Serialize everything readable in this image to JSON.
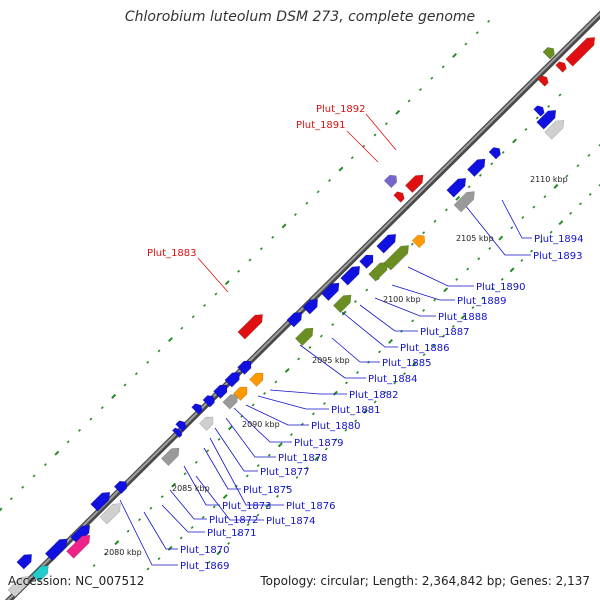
{
  "title": "Chlorobium luteolum DSM 273, complete genome",
  "footer": {
    "accession": "Accession: NC_007512",
    "summary": "Topology: circular; Length: 2,364,842 bp; Genes: 2,137"
  },
  "colors": {
    "backbone": "#8a8a8a",
    "cds_blue": "#1010e0",
    "cds_red": "#e01010",
    "cds_olive": "#6b8e23",
    "cds_gray": "#9a9a9a",
    "cds_light": "#cfcfcf",
    "cds_orange": "#ff9900",
    "cds_magenta": "#ee2288",
    "cds_cyan": "#22cccc",
    "cds_purple": "#7766cc",
    "tick_green": "#228b22",
    "label_red": "#dd1111",
    "label_blue": "#1111cc"
  },
  "scale_labels": [
    "2080 kbp",
    "2085 kbp",
    "2090 kbp",
    "2095 kbp",
    "2100 kbp",
    "2105 kbp",
    "2110 kbp"
  ],
  "gene_labels_blue": [
    "Plut_1869",
    "Plut_1870",
    "Plut_1871",
    "Plut_1872",
    "Plut_1873",
    "Plut_1874",
    "Plut_1875",
    "Plut_1876",
    "Plut_1877",
    "Plut_1878",
    "Plut_1879",
    "Plut_1880",
    "Plut_1881",
    "Plut_1882",
    "Plut_1884",
    "Plut_1885",
    "Plut_1886",
    "Plut_1887",
    "Plut_1888",
    "Plut_1889",
    "Plut_1890",
    "Plut_1893",
    "Plut_1894"
  ],
  "gene_labels_red": [
    "Plut_1883",
    "Plut_1891",
    "Plut_1892"
  ]
}
